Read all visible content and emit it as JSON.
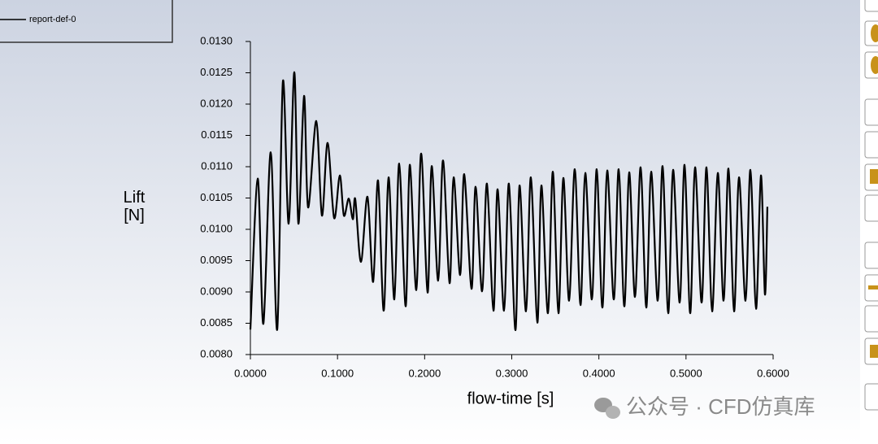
{
  "chart_data": {
    "type": "line",
    "xlabel": "flow-time [s]",
    "ylabel": "Lift [N]",
    "legend_position": "upper-left",
    "watermark": "公众号 · CFD仿真库",
    "xlim": [
      0,
      0.6
    ],
    "xticks": [
      {
        "value": 0,
        "label": "0.0000"
      },
      {
        "value": 0.1,
        "label": "0.1000"
      },
      {
        "value": 0.2,
        "label": "0.2000"
      },
      {
        "value": 0.3,
        "label": "0.3000"
      },
      {
        "value": 0.4,
        "label": "0.4000"
      },
      {
        "value": 0.5,
        "label": "0.5000"
      },
      {
        "value": 0.6,
        "label": "0.6000"
      }
    ],
    "ylim": [
      0.008,
      0.013
    ],
    "yticks": [
      {
        "value": 0.008,
        "label": "0.0080"
      },
      0.0085,
      {
        "value": 0.009,
        "label": "0.0090"
      },
      0.0095,
      {
        "value": 0.01,
        "label": "0.0100"
      },
      0.0105,
      {
        "value": 0.011,
        "label": "0.0110"
      },
      0.0115,
      {
        "value": 0.012,
        "label": "0.0120"
      },
      0.0125,
      {
        "value": 0.013,
        "label": "0.0130"
      }
    ],
    "x": [
      0,
      0.0084,
      0.0149,
      0.0233,
      0.0308,
      0.0373,
      0.0439,
      0.0504,
      0.0551,
      0.0616,
      0.0662,
      0.0756,
      0.0821,
      0.0886,
      0.0961,
      0.1026,
      0.1073,
      0.1129,
      0.1176,
      0.1204,
      0.1269,
      0.1344,
      0.1409,
      0.1465,
      0.153,
      0.1586,
      0.1652,
      0.1708,
      0.1782,
      0.1829,
      0.1904,
      0.196,
      0.2034,
      0.2081,
      0.2155,
      0.2211,
      0.2286,
      0.2333,
      0.2407,
      0.2454,
      0.2538,
      0.2585,
      0.2659,
      0.2715,
      0.279,
      0.2837,
      0.2911,
      0.2967,
      0.3042,
      0.3089,
      0.3163,
      0.3219,
      0.3294,
      0.334,
      0.3415,
      0.3471,
      0.3536,
      0.3592,
      0.3658,
      0.3723,
      0.3789,
      0.3844,
      0.3919,
      0.3975,
      0.404,
      0.4096,
      0.4171,
      0.4227,
      0.4292,
      0.4348,
      0.4414,
      0.4479,
      0.4544,
      0.46,
      0.4675,
      0.4731,
      0.4796,
      0.4852,
      0.4927,
      0.4983,
      0.5048,
      0.5104,
      0.5179,
      0.5235,
      0.53,
      0.5365,
      0.5431,
      0.5487,
      0.5552,
      0.5608,
      0.5683,
      0.5739,
      0.5804,
      0.586,
      0.5906,
      0.5934
    ],
    "series": [
      {
        "name": "report-def-0",
        "color": "#000000",
        "values": [
          0.0084,
          0.01081,
          0.00849,
          0.01123,
          0.0084,
          0.01236,
          0.01009,
          0.01251,
          0.01009,
          0.01213,
          0.01035,
          0.01173,
          0.01022,
          0.01138,
          0.01018,
          0.01086,
          0.01022,
          0.01049,
          0.01016,
          0.01048,
          0.00948,
          0.01052,
          0.00916,
          0.01078,
          0.0087,
          0.01083,
          0.00888,
          0.01105,
          0.00877,
          0.01103,
          0.00903,
          0.01121,
          0.00899,
          0.01101,
          0.00918,
          0.0111,
          0.00914,
          0.01083,
          0.00927,
          0.01088,
          0.00905,
          0.01068,
          0.00901,
          0.01073,
          0.0087,
          0.01064,
          0.0087,
          0.01073,
          0.00839,
          0.0107,
          0.00869,
          0.01083,
          0.00851,
          0.0107,
          0.00866,
          0.01092,
          0.00866,
          0.01082,
          0.00886,
          0.01096,
          0.00879,
          0.0109,
          0.00888,
          0.01096,
          0.00875,
          0.01094,
          0.00888,
          0.01096,
          0.00877,
          0.01091,
          0.00892,
          0.01099,
          0.00875,
          0.01092,
          0.00886,
          0.01101,
          0.00866,
          0.01095,
          0.00883,
          0.01103,
          0.00866,
          0.01099,
          0.00883,
          0.01099,
          0.00869,
          0.0109,
          0.00886,
          0.01097,
          0.00869,
          0.01083,
          0.00886,
          0.01095,
          0.00873,
          0.01086,
          0.00896,
          0.01036
        ]
      }
    ]
  }
}
